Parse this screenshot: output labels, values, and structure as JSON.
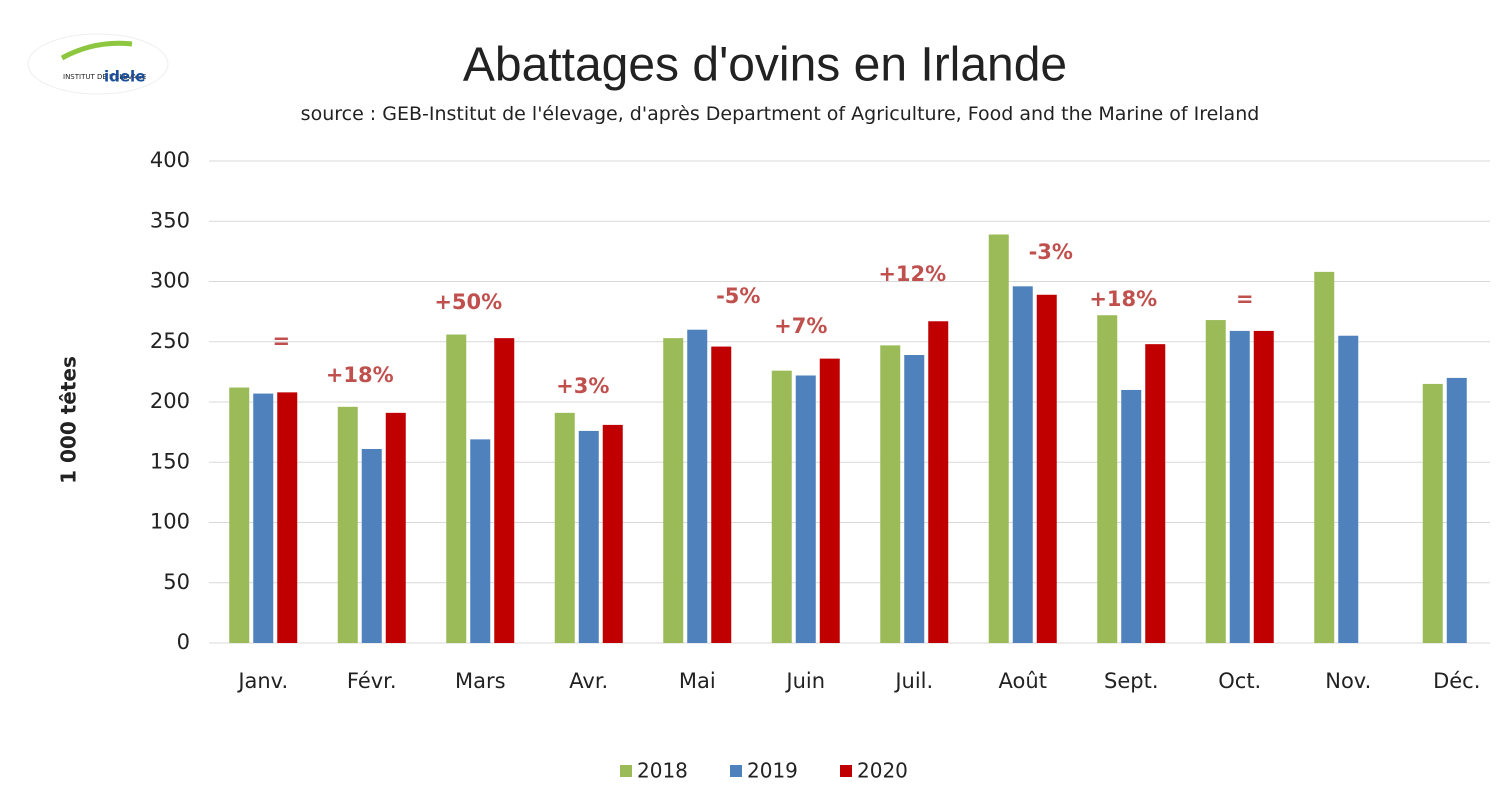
{
  "chart_data": {
    "type": "bar",
    "title": "Abattages d'ovins en Irlande",
    "subtitle": "source : GEB-Institut de l'élevage, d'après Department of Agriculture, Food and the Marine of Ireland",
    "logo": {
      "small": "INSTITUT DE L'ÉLEVAGE",
      "brand": "idele"
    },
    "y_label": "1 000 têtes",
    "categories": [
      "Janv.",
      "Févr.",
      "Mars",
      "Avr.",
      "Mai",
      "Juin",
      "Juil.",
      "Août",
      "Sept.",
      "Oct.",
      "Nov.",
      "Déc."
    ],
    "series": [
      {
        "name": "2018",
        "color": "#9bbb59",
        "values": [
          212,
          196,
          256,
          191,
          253,
          226,
          247,
          339,
          272,
          268,
          308,
          215
        ]
      },
      {
        "name": "2019",
        "color": "#4f81bd",
        "values": [
          207,
          161,
          169,
          176,
          260,
          222,
          239,
          296,
          210,
          259,
          255,
          220
        ]
      },
      {
        "name": "2020",
        "color": "#c00000",
        "values": [
          208,
          191,
          253,
          181,
          246,
          236,
          267,
          289,
          248,
          259,
          null,
          null
        ]
      }
    ],
    "annotations": [
      "=",
      "+18%",
      "+50%",
      "+3%",
      "-5%",
      "+7%",
      "+12%",
      "-3%",
      "+18%",
      "="
    ],
    "annotation_color": "#c0504d",
    "ylim": [
      0,
      400
    ],
    "yticks": [
      0,
      50,
      100,
      150,
      200,
      250,
      300,
      350,
      400
    ],
    "grid": true,
    "legend": "bottom"
  }
}
